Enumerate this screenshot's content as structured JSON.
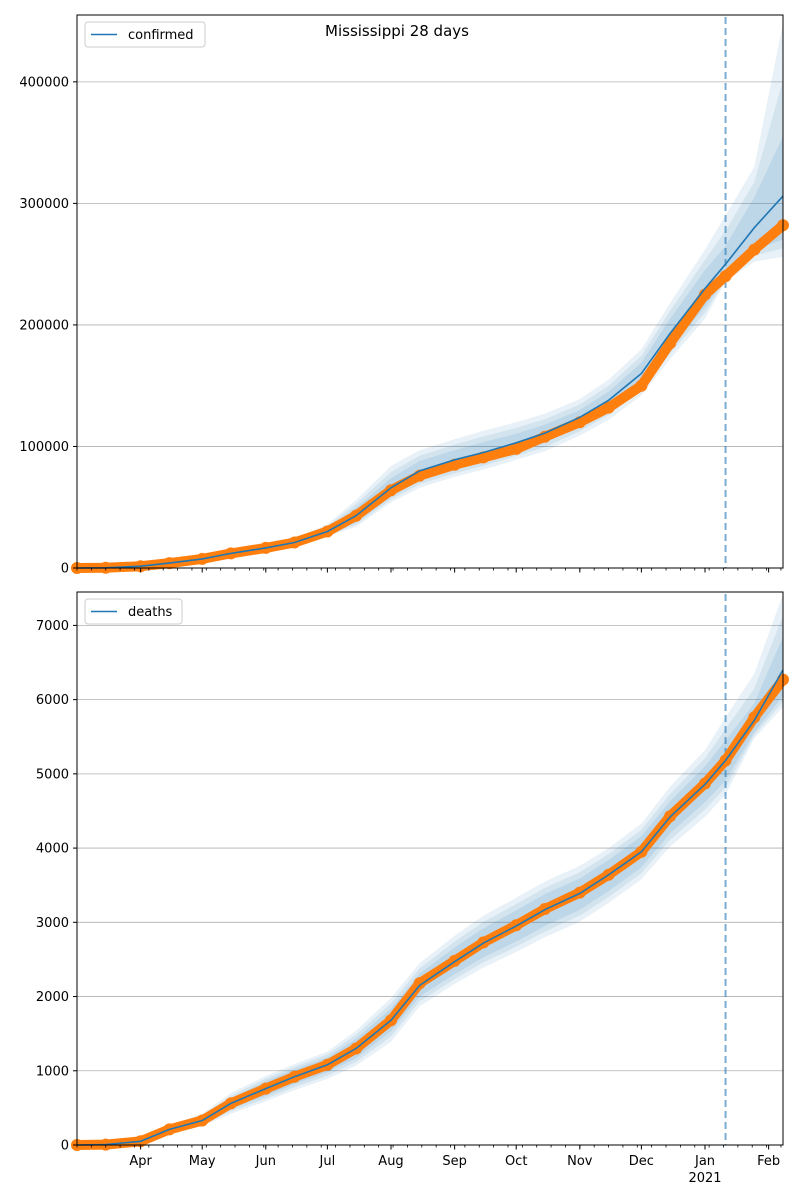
{
  "figure": {
    "title": "Mississippi 28 days"
  },
  "chart_data": [
    {
      "type": "line",
      "panel": "confirmed",
      "legend": "top-left",
      "legend_entries": [
        "confirmed"
      ],
      "grid": "horizontal",
      "xlim": [
        "2020-03-01",
        "2021-02-08"
      ],
      "ylim": [
        0,
        455000
      ],
      "yticks": [
        0,
        100000,
        200000,
        300000,
        400000
      ],
      "ytick_labels": [
        "0",
        "100000",
        "200000",
        "300000",
        "400000"
      ],
      "forecast_start": "2021-01-11",
      "series": [
        {
          "name": "confirmed",
          "color": "#1f77b4",
          "x": [
            "2020-03-01",
            "2020-03-15",
            "2020-04-01",
            "2020-04-15",
            "2020-05-01",
            "2020-05-15",
            "2020-06-01",
            "2020-06-15",
            "2020-07-01",
            "2020-07-15",
            "2020-08-01",
            "2020-08-15",
            "2020-09-01",
            "2020-09-15",
            "2020-10-01",
            "2020-10-15",
            "2020-11-01",
            "2020-11-15",
            "2020-12-01",
            "2020-12-15",
            "2021-01-01",
            "2021-01-11",
            "2021-01-25",
            "2021-02-08"
          ],
          "values": [
            0,
            200,
            1500,
            4000,
            7500,
            12000,
            16500,
            21000,
            30000,
            43000,
            66000,
            80000,
            89000,
            95000,
            103000,
            111000,
            124000,
            138000,
            160000,
            193000,
            230000,
            250000,
            280000,
            306000
          ]
        }
      ],
      "bands": {
        "color": "#1f77b4",
        "x": [
          "2020-06-15",
          "2020-07-01",
          "2020-07-15",
          "2020-08-01",
          "2020-08-15",
          "2020-09-01",
          "2020-09-15",
          "2020-10-01",
          "2020-10-15",
          "2020-11-01",
          "2020-11-15",
          "2020-12-01",
          "2020-12-15",
          "2021-01-01",
          "2021-01-11",
          "2021-01-25",
          "2021-02-08"
        ],
        "outer_upper": [
          24000,
          36000,
          56000,
          84000,
          97000,
          106000,
          113000,
          120000,
          127000,
          139000,
          155000,
          180000,
          218000,
          262000,
          290000,
          330000,
          448000
        ],
        "outer_lower": [
          18000,
          26000,
          34000,
          54000,
          66000,
          75000,
          81000,
          89000,
          96000,
          109000,
          122000,
          142000,
          172000,
          205000,
          236000,
          252000,
          256000
        ],
        "inner_upper": [
          22500,
          33000,
          49500,
          74000,
          88000,
          97000,
          103500,
          110500,
          118000,
          130000,
          145000,
          169000,
          205000,
          245000,
          265000,
          305000,
          355000
        ],
        "inner_lower": [
          19500,
          27500,
          37500,
          58500,
          72000,
          81000,
          87000,
          95500,
          103000,
          116000,
          130000,
          151000,
          181000,
          215000,
          238000,
          262000,
          270000
        ]
      },
      "observed": {
        "name": "observed",
        "color": "#ff7f0e",
        "x": [
          "2020-03-01",
          "2020-03-15",
          "2020-04-01",
          "2020-04-15",
          "2020-05-01",
          "2020-05-15",
          "2020-06-01",
          "2020-06-15",
          "2020-07-01",
          "2020-07-15",
          "2020-08-01",
          "2020-08-15",
          "2020-09-01",
          "2020-09-15",
          "2020-10-01",
          "2020-10-15",
          "2020-11-01",
          "2020-11-15",
          "2020-12-01",
          "2020-12-15",
          "2021-01-01",
          "2021-01-11",
          "2021-01-25",
          "2021-02-08"
        ],
        "values": [
          0,
          200,
          1500,
          4000,
          7500,
          12000,
          16500,
          21000,
          30000,
          43000,
          64000,
          76000,
          85000,
          91000,
          98000,
          108000,
          120000,
          132000,
          150000,
          185000,
          225000,
          240000,
          262000,
          282000
        ]
      }
    },
    {
      "type": "line",
      "panel": "deaths",
      "legend": "top-left",
      "legend_entries": [
        "deaths"
      ],
      "grid": "horizontal",
      "xlim": [
        "2020-03-01",
        "2021-02-08"
      ],
      "ylim": [
        0,
        7450
      ],
      "yticks": [
        0,
        1000,
        2000,
        3000,
        4000,
        5000,
        6000,
        7000
      ],
      "ytick_labels": [
        "0",
        "1000",
        "2000",
        "3000",
        "4000",
        "5000",
        "6000",
        "7000"
      ],
      "xtick_labels": [
        "Apr",
        "May",
        "Jun",
        "Jul",
        "Aug",
        "Sep",
        "Oct",
        "Nov",
        "Dec",
        "Jan",
        "Feb"
      ],
      "xtick_dates": [
        "2020-04-01",
        "2020-05-01",
        "2020-06-01",
        "2020-07-01",
        "2020-08-01",
        "2020-09-01",
        "2020-10-01",
        "2020-11-01",
        "2020-12-01",
        "2021-01-01",
        "2021-02-01"
      ],
      "year_label": "2021",
      "forecast_start": "2021-01-11",
      "series": [
        {
          "name": "deaths",
          "color": "#1f77b4",
          "x": [
            "2020-03-01",
            "2020-03-15",
            "2020-04-01",
            "2020-04-15",
            "2020-05-01",
            "2020-05-15",
            "2020-06-01",
            "2020-06-15",
            "2020-07-01",
            "2020-07-15",
            "2020-08-01",
            "2020-08-15",
            "2020-09-01",
            "2020-09-15",
            "2020-10-01",
            "2020-10-15",
            "2020-11-01",
            "2020-11-15",
            "2020-12-01",
            "2020-12-15",
            "2021-01-01",
            "2021-01-11",
            "2021-01-25",
            "2021-02-08"
          ],
          "values": [
            0,
            5,
            50,
            210,
            330,
            560,
            760,
            920,
            1080,
            1300,
            1680,
            2150,
            2470,
            2720,
            2950,
            3170,
            3390,
            3640,
            3950,
            4420,
            4860,
            5180,
            5720,
            6400
          ]
        }
      ],
      "bands": {
        "color": "#1f77b4",
        "x": [
          "2020-04-01",
          "2020-04-15",
          "2020-05-01",
          "2020-05-15",
          "2020-06-01",
          "2020-06-15",
          "2020-07-01",
          "2020-07-15",
          "2020-08-01",
          "2020-08-15",
          "2020-09-01",
          "2020-09-15",
          "2020-10-01",
          "2020-10-15",
          "2020-11-01",
          "2020-11-15",
          "2020-12-01",
          "2020-12-15",
          "2021-01-01",
          "2021-01-11",
          "2021-01-25",
          "2021-02-08"
        ],
        "outer_upper": [
          70,
          270,
          420,
          700,
          930,
          1090,
          1260,
          1540,
          1980,
          2450,
          2820,
          3090,
          3330,
          3550,
          3760,
          4000,
          4330,
          4830,
          5320,
          5760,
          6350,
          7420
        ],
        "outer_lower": [
          35,
          155,
          250,
          420,
          590,
          740,
          890,
          1070,
          1390,
          1870,
          2170,
          2390,
          2600,
          2800,
          3010,
          3260,
          3580,
          4020,
          4420,
          4720,
          5480,
          5900
        ],
        "inner_upper": [
          60,
          240,
          380,
          630,
          860,
          1020,
          1180,
          1430,
          1840,
          2310,
          2660,
          2920,
          3160,
          3380,
          3590,
          3840,
          4160,
          4630,
          5100,
          5450,
          5950,
          6850
        ],
        "inner_lower": [
          45,
          180,
          285,
          490,
          660,
          820,
          980,
          1170,
          1530,
          2000,
          2300,
          2530,
          2740,
          2950,
          3170,
          3420,
          3740,
          4200,
          4620,
          4910,
          5560,
          6050
        ]
      },
      "observed": {
        "name": "observed",
        "color": "#ff7f0e",
        "x": [
          "2020-03-01",
          "2020-03-15",
          "2020-04-01",
          "2020-04-15",
          "2020-05-01",
          "2020-05-15",
          "2020-06-01",
          "2020-06-15",
          "2020-07-01",
          "2020-07-15",
          "2020-08-01",
          "2020-08-15",
          "2020-09-01",
          "2020-09-15",
          "2020-10-01",
          "2020-10-15",
          "2020-11-01",
          "2020-11-15",
          "2020-12-01",
          "2020-12-15",
          "2021-01-01",
          "2021-01-11",
          "2021-01-25",
          "2021-02-08"
        ],
        "values": [
          0,
          5,
          50,
          210,
          330,
          560,
          760,
          920,
          1080,
          1300,
          1680,
          2180,
          2480,
          2730,
          2960,
          3180,
          3400,
          3640,
          3950,
          4430,
          4870,
          5180,
          5760,
          6270
        ]
      }
    }
  ]
}
